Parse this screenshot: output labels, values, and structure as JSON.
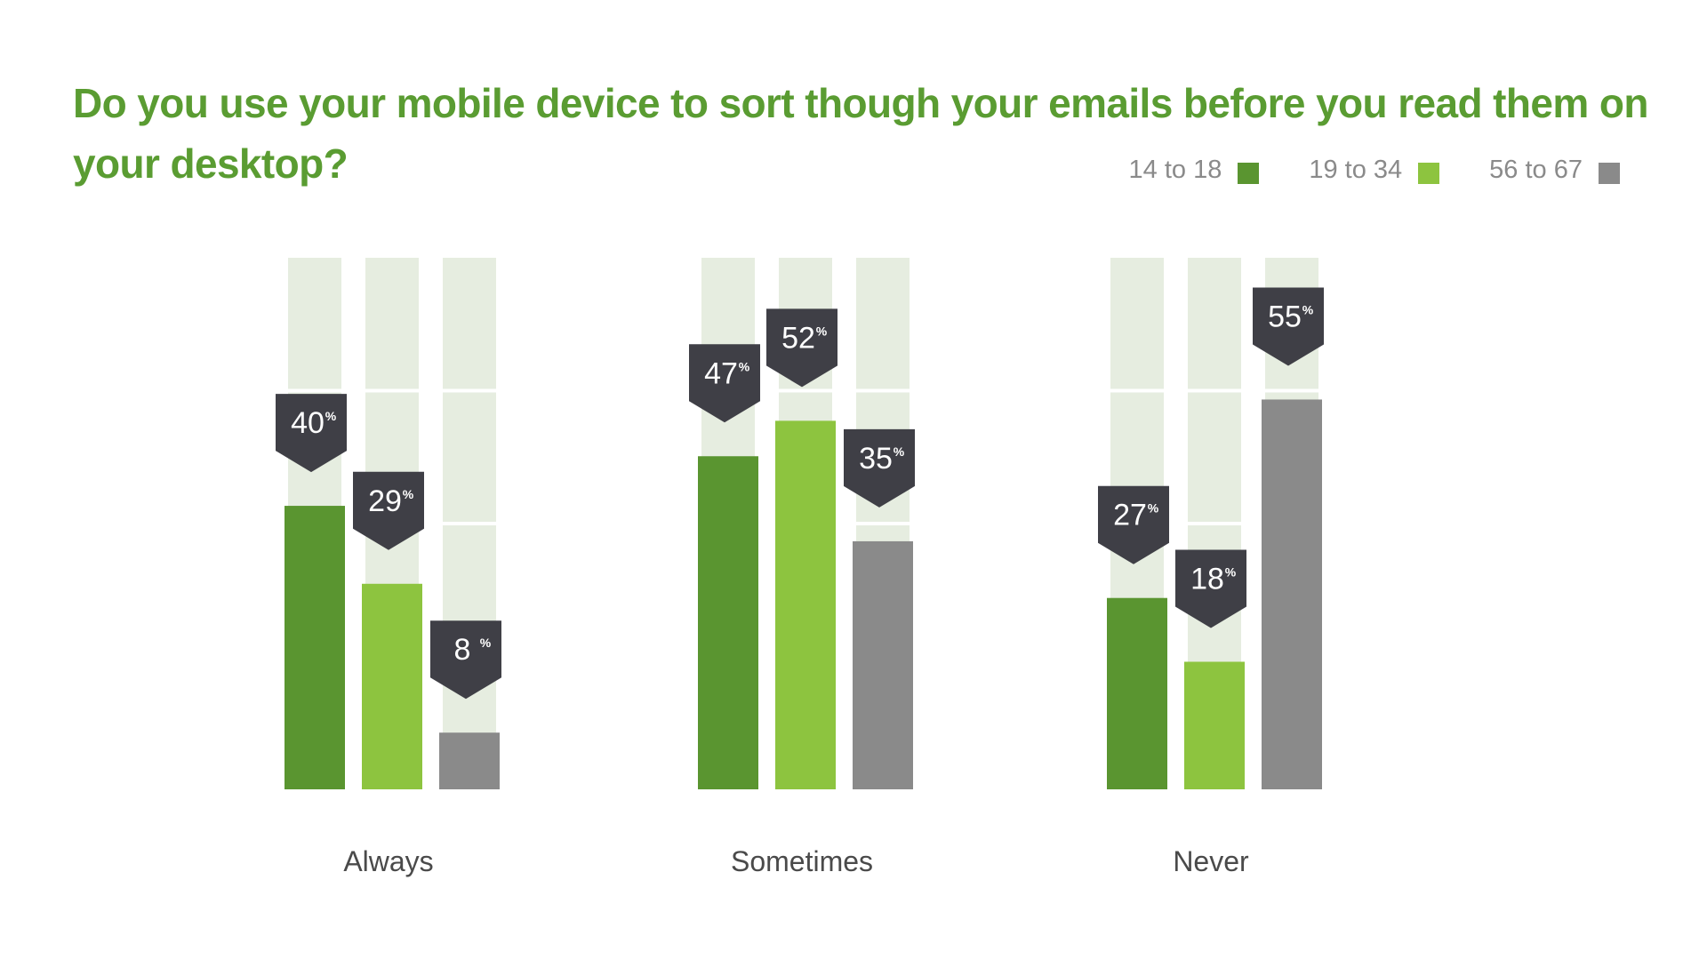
{
  "chart_data": {
    "type": "bar",
    "title": "Do you use your mobile device to sort though your emails before you read them on your desktop?",
    "categories": [
      "Always",
      "Sometimes",
      "Never"
    ],
    "series": [
      {
        "name": "14 to 18",
        "values": [
          40,
          47,
          27
        ],
        "labels": [
          "40%",
          "47%",
          "27%"
        ]
      },
      {
        "name": "19 to 34",
        "values": [
          29,
          52,
          18
        ],
        "labels": [
          "29%",
          "52%",
          "18%"
        ]
      },
      {
        "name": "56 to 67",
        "values": [
          8,
          35,
          55
        ],
        "labels": [
          "8%",
          "35%",
          "55%"
        ]
      }
    ],
    "ylim": [
      0,
      75
    ],
    "legend_position": "top-right",
    "colors": {
      "series": [
        "#5a9530",
        "#8dc43f",
        "#8a8a8a"
      ],
      "track": "#e6ede0",
      "callout": "#3f3f46",
      "title": "#5a9c32"
    }
  }
}
